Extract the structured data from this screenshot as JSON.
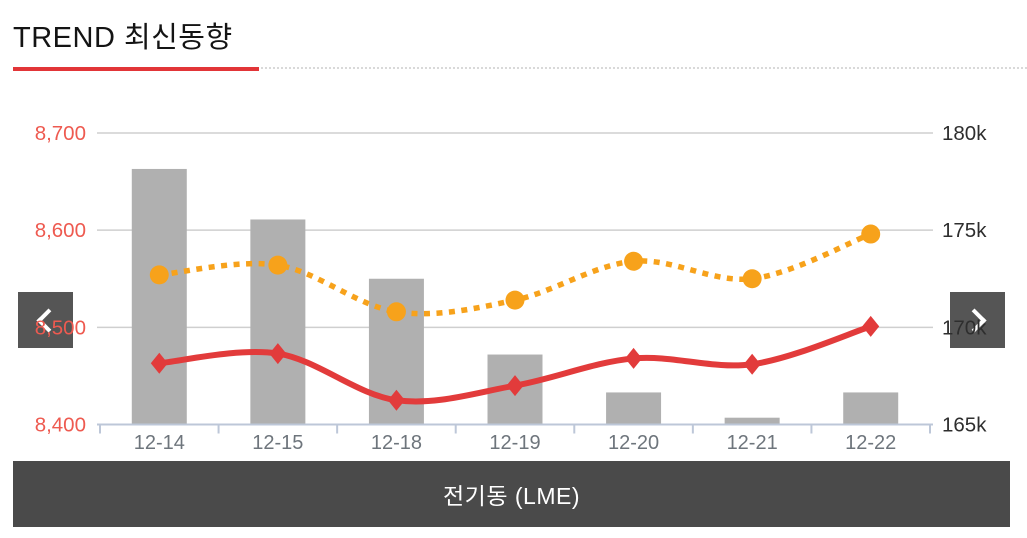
{
  "header": {
    "title": "TREND 최신동향"
  },
  "nav": {
    "prev_icon": "chevron-left",
    "next_icon": "chevron-right"
  },
  "footer": {
    "label": "전기동 (LME)"
  },
  "colors": {
    "title_underline": "#e23538",
    "left_axis_label": "#ee5a50",
    "right_axis_label": "#2e2e2e",
    "x_axis_label": "#6e757c",
    "grid_line": "#cfcfcf",
    "axis_line": "#bdc7d8",
    "bar": "#b0b0b0",
    "solid_line": "#e23b3b",
    "dotted_line": "#f7a21b",
    "nav_button_bg": "#555555",
    "footer_bg": "#4a4a4a"
  },
  "chart_data": {
    "type": "combo",
    "categories": [
      "12-14",
      "12-15",
      "12-18",
      "12-19",
      "12-20",
      "12-21",
      "12-22"
    ],
    "series": [
      {
        "name": "bars",
        "type": "bar",
        "axis": "left",
        "color": "#b0b0b0",
        "values": [
          8663,
          8611,
          8550,
          8472,
          8433,
          8407,
          8433
        ]
      },
      {
        "name": "solid-line",
        "type": "line",
        "axis": "left",
        "line_style": "solid",
        "marker": "diamond",
        "color": "#e23b3b",
        "values": [
          8463,
          8473,
          8425,
          8440,
          8468,
          8462,
          8501
        ]
      },
      {
        "name": "dotted-line",
        "type": "line",
        "axis": "right",
        "line_style": "dotted",
        "marker": "circle",
        "color": "#f7a21b",
        "values": [
          172700,
          173200,
          170800,
          171400,
          173400,
          172500,
          174800
        ]
      }
    ],
    "left_axis": {
      "min": 8400,
      "max": 8700,
      "tick_step": 100,
      "tick_labels": [
        "8,400",
        "8,500",
        "8,600",
        "8,700"
      ],
      "label_color": "#ee5a50"
    },
    "right_axis": {
      "min": 165000,
      "max": 180000,
      "tick_step": 5000,
      "tick_labels": [
        "165k",
        "170k",
        "175k",
        "180k"
      ],
      "label_color": "#2e2e2e"
    },
    "grid": true,
    "legend": false,
    "title": "TREND 최신동향",
    "xlabel": "",
    "ylabel": ""
  }
}
